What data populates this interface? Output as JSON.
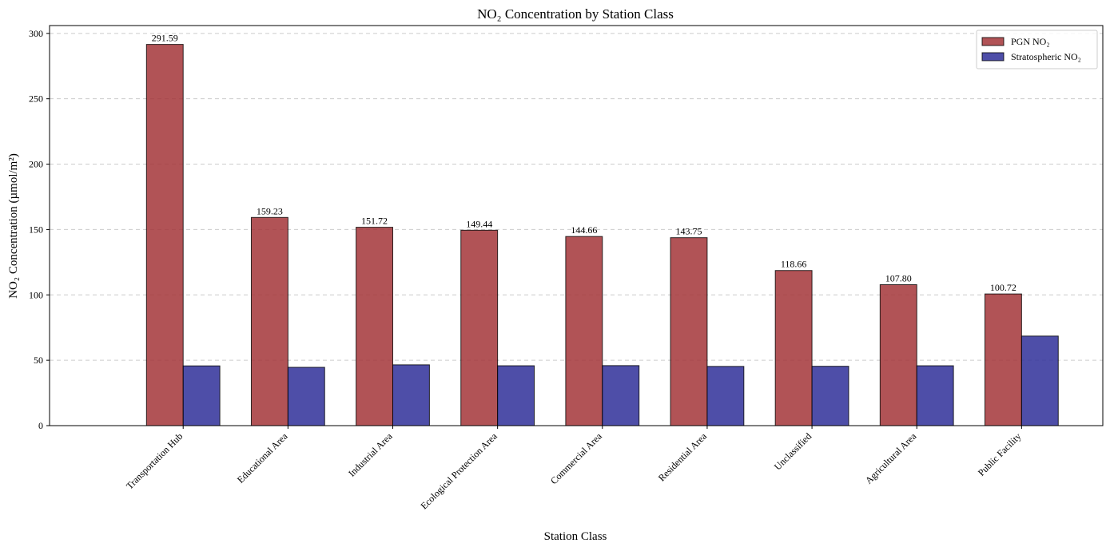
{
  "chart_data": {
    "type": "bar",
    "title": "NO₂ Concentration by Station Class",
    "xlabel": "Station Class",
    "ylabel": "NO₂ Concentration (µmol/m²)",
    "categories": [
      "Transportation Hub",
      "Educational Area",
      "Industrial Area",
      "Ecological Protection Area",
      "Commercial Area",
      "Residential Area",
      "Unclassified",
      "Agricultural Area",
      "Public Facility"
    ],
    "series": [
      {
        "name": "PGN NO₂",
        "color": "#a33538",
        "values": [
          291.59,
          159.23,
          151.72,
          149.44,
          144.66,
          143.75,
          118.66,
          107.8,
          100.72
        ],
        "value_labels": [
          "291.59",
          "159.23",
          "151.72",
          "149.44",
          "144.66",
          "143.75",
          "118.66",
          "107.80",
          "100.72"
        ]
      },
      {
        "name": "Stratospheric NO₂",
        "color": "#2f2f99",
        "values": [
          45.7,
          44.6,
          46.5,
          45.8,
          45.9,
          45.3,
          45.4,
          45.8,
          68.5
        ]
      }
    ],
    "ylim": [
      0,
      306
    ],
    "yticks": [
      "0",
      "50",
      "100",
      "150",
      "200",
      "250",
      "300"
    ],
    "grid": "y-dashed",
    "legend_position": "top-right"
  }
}
